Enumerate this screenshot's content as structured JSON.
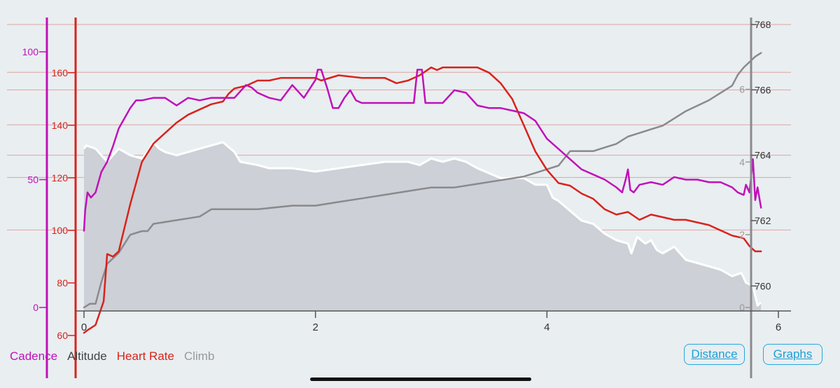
{
  "chart_data": {
    "type": "line",
    "x_axis": {
      "ticks": [
        0,
        2,
        4,
        6
      ],
      "xlim": [
        0,
        6
      ]
    },
    "axes": {
      "cadence": {
        "ticks": [
          0,
          50,
          100
        ],
        "ylim": [
          0,
          100
        ],
        "color": "#c011b8"
      },
      "heart_rate": {
        "ticks": [
          60,
          80,
          100,
          120,
          140,
          160
        ],
        "ylim": [
          60,
          165
        ],
        "color": "#d8231c"
      },
      "altitude": {
        "ticks": [
          760,
          762,
          764,
          766,
          768
        ],
        "ylim": [
          759.3,
          768
        ],
        "color": "#555555"
      },
      "climb": {
        "ticks": [
          0,
          2,
          4,
          6
        ],
        "ylim": [
          0,
          7.05
        ],
        "color": "#999999"
      }
    },
    "series": [
      {
        "key": "altitude_area",
        "axis": "altitude",
        "color": "#ffffff",
        "fill": "#cdd0d6",
        "x": [
          0,
          0.02,
          0.1,
          0.2,
          0.3,
          0.4,
          0.5,
          0.55,
          0.6,
          0.65,
          0.7,
          0.8,
          0.9,
          1.0,
          1.1,
          1.2,
          1.3,
          1.35,
          1.5,
          1.6,
          1.8,
          2.0,
          2.2,
          2.4,
          2.6,
          2.7,
          2.8,
          2.9,
          3.0,
          3.1,
          3.2,
          3.3,
          3.4,
          3.6,
          3.8,
          3.9,
          4.0,
          4.05,
          4.1,
          4.2,
          4.3,
          4.4,
          4.5,
          4.6,
          4.7,
          4.73,
          4.78,
          4.85,
          4.9,
          4.95,
          5.0,
          5.1,
          5.2,
          5.3,
          5.4,
          5.5,
          5.6,
          5.68,
          5.72,
          5.78,
          5.82,
          5.85
        ],
        "values": [
          764.2,
          764.3,
          764.2,
          763.8,
          764.2,
          764.0,
          763.9,
          764.1,
          764.4,
          764.2,
          764.1,
          764.0,
          764.1,
          764.2,
          764.3,
          764.4,
          764.1,
          763.8,
          763.7,
          763.6,
          763.6,
          763.5,
          763.6,
          763.7,
          763.8,
          763.8,
          763.8,
          763.7,
          763.9,
          763.8,
          763.9,
          763.8,
          763.6,
          763.3,
          763.3,
          763.1,
          763.1,
          762.7,
          762.6,
          762.3,
          762.0,
          761.9,
          761.6,
          761.4,
          761.3,
          761.0,
          761.5,
          761.3,
          761.4,
          761.1,
          761.0,
          761.2,
          760.8,
          760.7,
          760.6,
          760.5,
          760.3,
          760.4,
          760.1,
          760.0,
          759.4,
          759.5
        ]
      },
      {
        "key": "climb",
        "axis": "climb",
        "color": "#8a8a8e",
        "x": [
          0,
          0.05,
          0.1,
          0.15,
          0.2,
          0.3,
          0.4,
          0.5,
          0.55,
          0.6,
          0.8,
          1.0,
          1.1,
          1.2,
          1.5,
          1.8,
          2.0,
          2.2,
          2.4,
          2.6,
          2.8,
          3.0,
          3.2,
          3.4,
          3.6,
          3.8,
          3.9,
          4.0,
          4.1,
          4.2,
          4.4,
          4.5,
          4.6,
          4.7,
          4.8,
          4.9,
          5.0,
          5.2,
          5.4,
          5.5,
          5.6,
          5.65,
          5.7,
          5.8,
          5.85
        ],
        "values": [
          0.0,
          0.1,
          0.1,
          0.7,
          1.2,
          1.5,
          2.0,
          2.1,
          2.1,
          2.3,
          2.4,
          2.5,
          2.7,
          2.7,
          2.7,
          2.8,
          2.8,
          2.9,
          3.0,
          3.1,
          3.2,
          3.3,
          3.3,
          3.4,
          3.5,
          3.6,
          3.7,
          3.8,
          3.9,
          4.3,
          4.3,
          4.4,
          4.5,
          4.7,
          4.8,
          4.9,
          5.0,
          5.4,
          5.7,
          5.9,
          6.1,
          6.4,
          6.6,
          6.9,
          7.0
        ]
      },
      {
        "key": "heart_rate",
        "axis": "heart_rate",
        "color": "#d8231c",
        "x": [
          0,
          0.03,
          0.1,
          0.17,
          0.2,
          0.25,
          0.3,
          0.4,
          0.45,
          0.5,
          0.6,
          0.7,
          0.8,
          0.9,
          1.0,
          1.1,
          1.2,
          1.25,
          1.3,
          1.4,
          1.5,
          1.6,
          1.7,
          1.8,
          1.9,
          2.0,
          2.05,
          2.2,
          2.4,
          2.5,
          2.6,
          2.7,
          2.8,
          2.9,
          3.0,
          3.05,
          3.1,
          3.2,
          3.3,
          3.4,
          3.5,
          3.6,
          3.7,
          3.8,
          3.9,
          4.0,
          4.1,
          4.2,
          4.3,
          4.4,
          4.5,
          4.6,
          4.7,
          4.8,
          4.9,
          5.0,
          5.1,
          5.2,
          5.3,
          5.4,
          5.5,
          5.6,
          5.7,
          5.75,
          5.8,
          5.85
        ],
        "values": [
          61,
          62,
          64,
          73,
          91,
          90,
          92,
          110,
          118,
          126,
          133,
          137,
          141,
          144,
          146,
          148,
          149,
          152,
          154,
          155,
          157,
          157,
          158,
          158,
          158,
          158,
          157,
          159,
          158,
          158,
          158,
          156,
          157,
          159,
          162,
          161,
          162,
          162,
          162,
          162,
          160,
          156,
          150,
          140,
          130,
          123,
          118,
          117,
          114,
          112,
          108,
          106,
          107,
          104,
          106,
          105,
          104,
          104,
          103,
          102,
          100,
          98,
          97,
          94,
          92,
          92
        ]
      },
      {
        "key": "cadence",
        "axis": "cadence",
        "color": "#c011b8",
        "x": [
          0,
          0.01,
          0.03,
          0.06,
          0.1,
          0.15,
          0.2,
          0.25,
          0.3,
          0.4,
          0.45,
          0.5,
          0.6,
          0.7,
          0.8,
          0.9,
          1.0,
          1.1,
          1.2,
          1.3,
          1.4,
          1.45,
          1.5,
          1.6,
          1.7,
          1.8,
          1.9,
          2.0,
          2.02,
          2.05,
          2.1,
          2.15,
          2.2,
          2.25,
          2.3,
          2.35,
          2.4,
          2.5,
          2.6,
          2.7,
          2.8,
          2.85,
          2.88,
          2.92,
          2.95,
          3.0,
          3.1,
          3.2,
          3.3,
          3.4,
          3.5,
          3.6,
          3.7,
          3.8,
          3.9,
          4.0,
          4.1,
          4.2,
          4.3,
          4.4,
          4.5,
          4.6,
          4.65,
          4.68,
          4.7,
          4.72,
          4.75,
          4.8,
          4.9,
          5.0,
          5.1,
          5.2,
          5.3,
          5.4,
          5.5,
          5.6,
          5.65,
          5.7,
          5.72,
          5.75,
          5.78,
          5.8,
          5.82,
          5.85
        ],
        "values": [
          30,
          38,
          45,
          43,
          45,
          53,
          57,
          63,
          70,
          78,
          81,
          81,
          82,
          82,
          79,
          82,
          81,
          82,
          82,
          82,
          87,
          86,
          84,
          82,
          81,
          87,
          82,
          89,
          93,
          93,
          86,
          78,
          78,
          82,
          85,
          81,
          80,
          80,
          80,
          80,
          80,
          80,
          93,
          93,
          80,
          80,
          80,
          85,
          84,
          79,
          78,
          78,
          77,
          76,
          73,
          66,
          62,
          58,
          54,
          52,
          50,
          47,
          45,
          50,
          54,
          46,
          45,
          48,
          49,
          48,
          51,
          50,
          50,
          49,
          49,
          47,
          45,
          44,
          48,
          45,
          58,
          42,
          47,
          39
        ]
      }
    ]
  },
  "legend": [
    {
      "label": "Cadence",
      "color": "#c011b8"
    },
    {
      "label": "Altitude",
      "color": "#444444"
    },
    {
      "label": "Heart Rate",
      "color": "#d8231c"
    },
    {
      "label": "Climb",
      "color": "#999999"
    }
  ],
  "buttons": {
    "distance": "Distance",
    "graphs": "Graphs"
  }
}
